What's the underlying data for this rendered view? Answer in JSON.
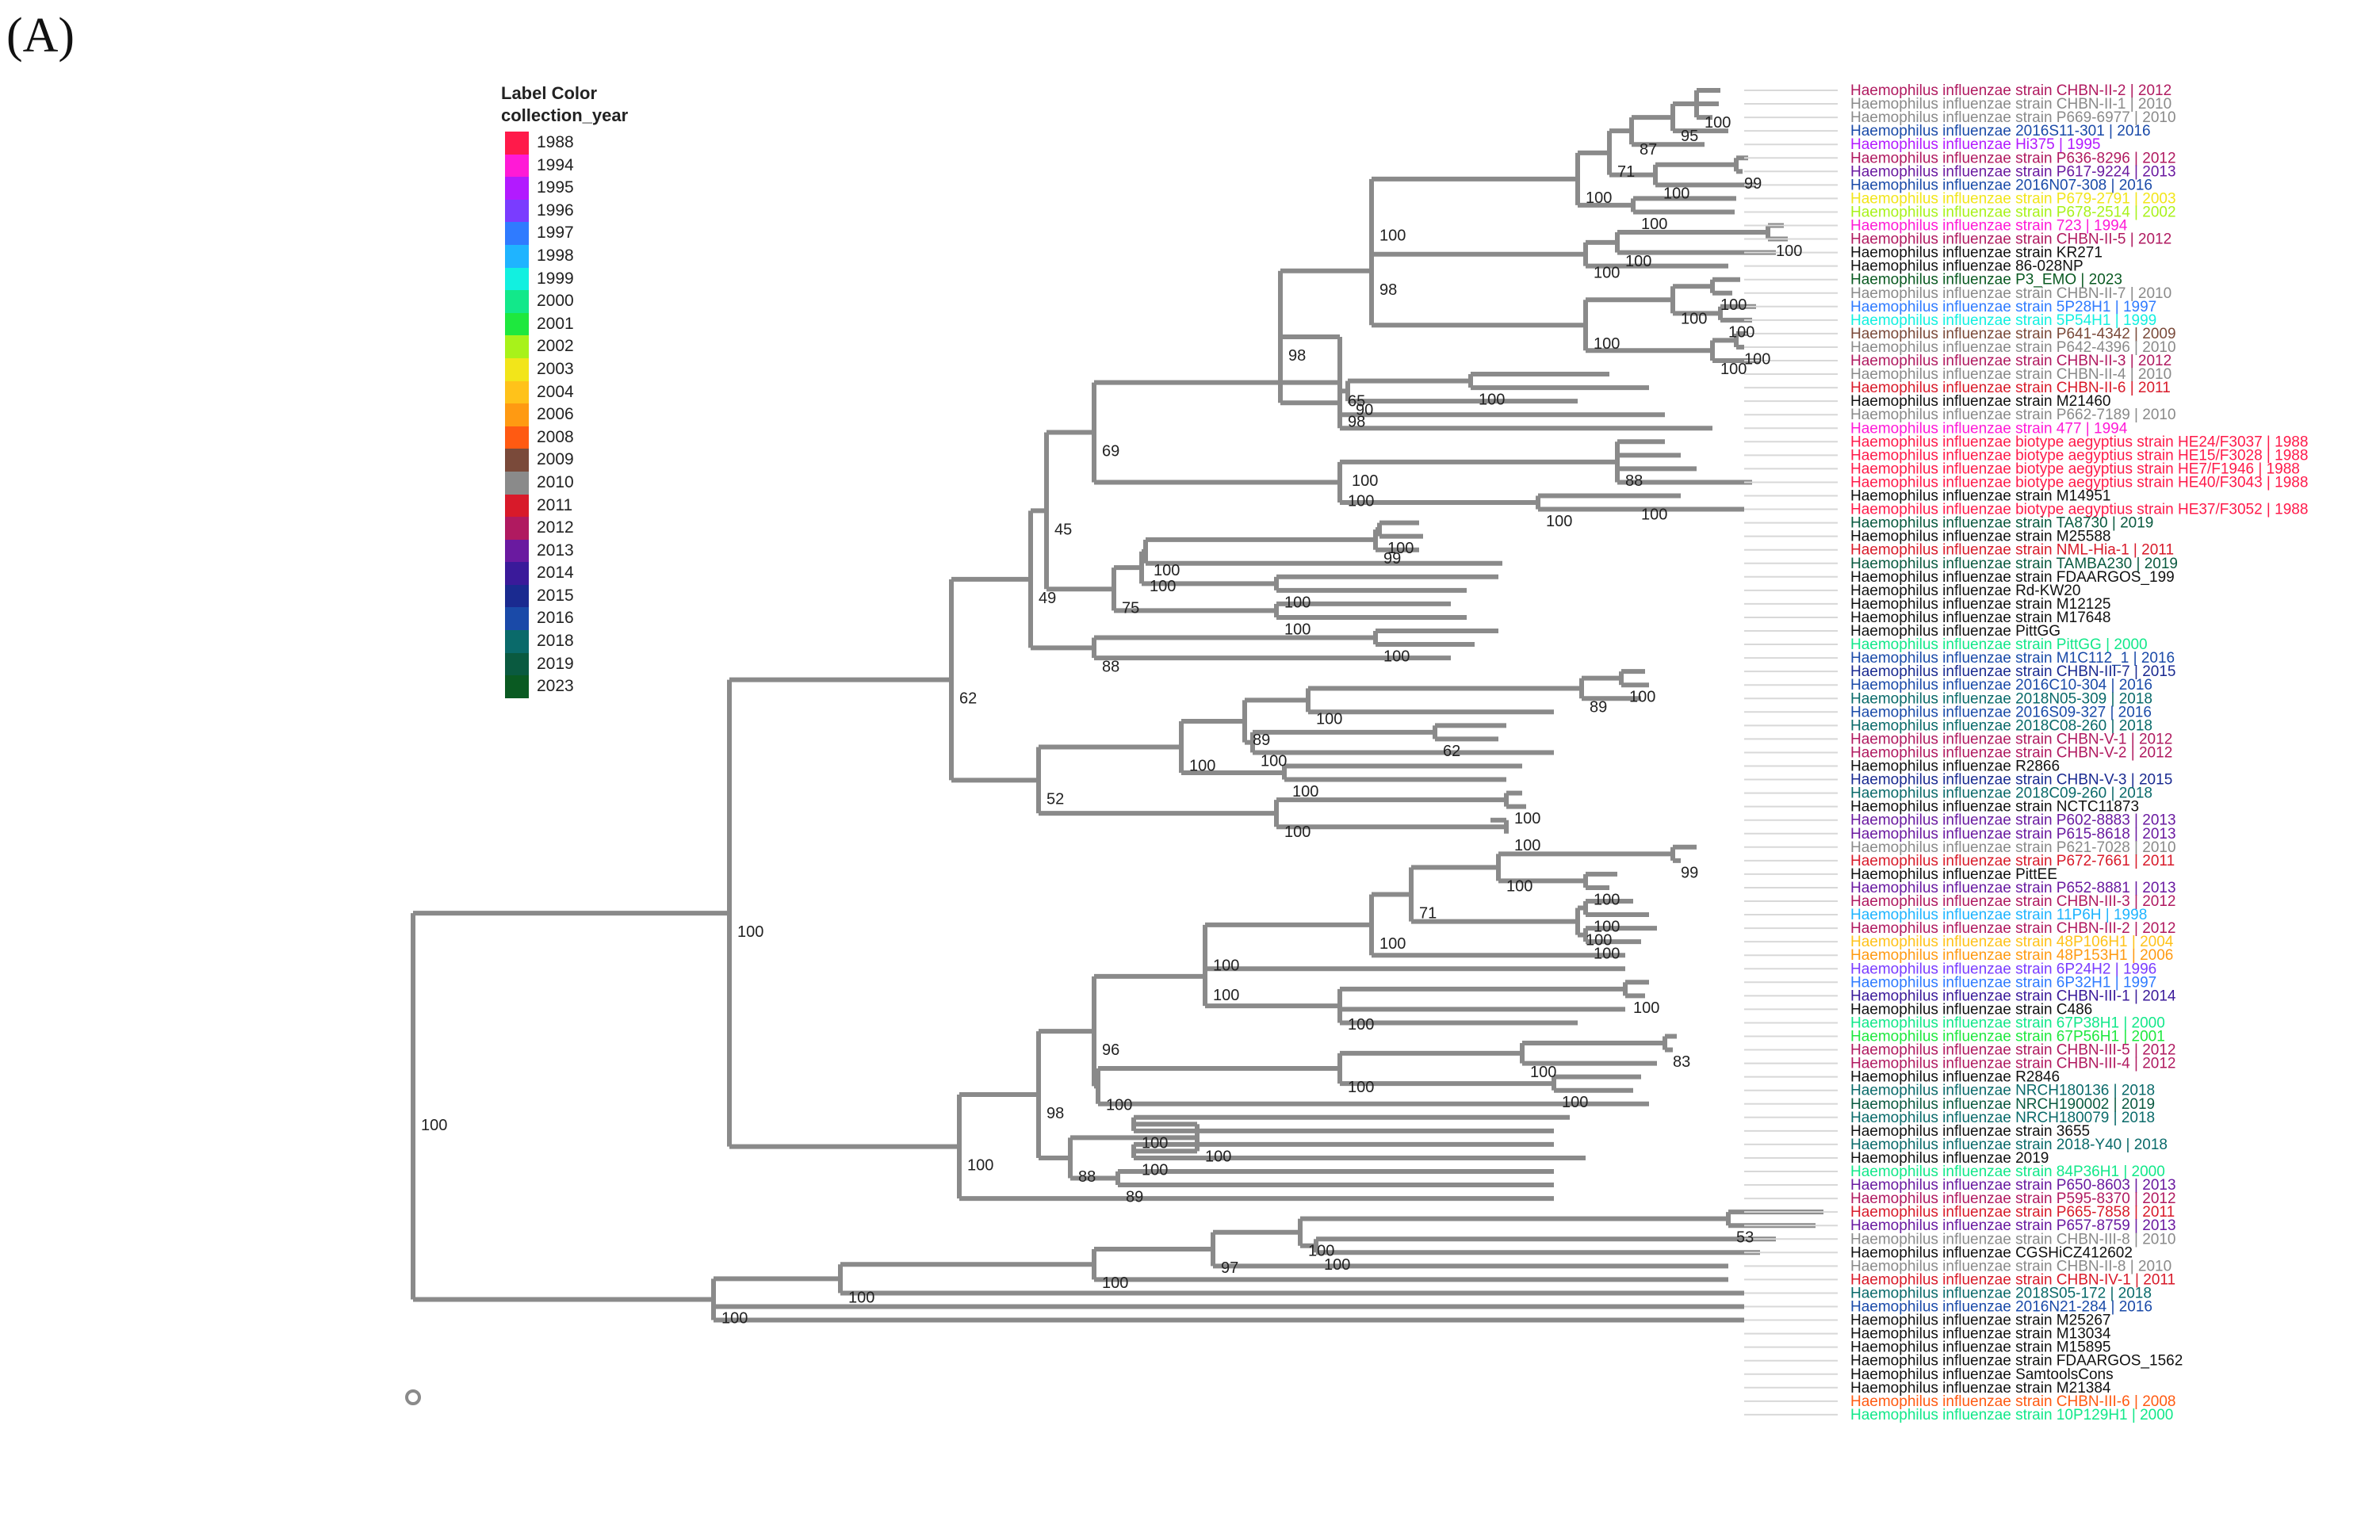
{
  "panel_label": "(A)",
  "legend": {
    "title_line1": "Label Color",
    "title_line2": "collection_year",
    "items": [
      {
        "year": "1988",
        "color": "#ff1a4a"
      },
      {
        "year": "1994",
        "color": "#ff1ad6"
      },
      {
        "year": "1995",
        "color": "#b21aff"
      },
      {
        "year": "1996",
        "color": "#7a3cff"
      },
      {
        "year": "1997",
        "color": "#2f7bff"
      },
      {
        "year": "1998",
        "color": "#1fb4ff"
      },
      {
        "year": "1999",
        "color": "#12f0e0"
      },
      {
        "year": "2000",
        "color": "#12e88a"
      },
      {
        "year": "2001",
        "color": "#1ee83e"
      },
      {
        "year": "2002",
        "color": "#a8f21a"
      },
      {
        "year": "2003",
        "color": "#f2e51a"
      },
      {
        "year": "2004",
        "color": "#ffc21a"
      },
      {
        "year": "2006",
        "color": "#ff9a12"
      },
      {
        "year": "2008",
        "color": "#ff5a12"
      },
      {
        "year": "2009",
        "color": "#7a4a3a"
      },
      {
        "year": "2010",
        "color": "#8a8a8a"
      },
      {
        "year": "2011",
        "color": "#d81a2a"
      },
      {
        "year": "2012",
        "color": "#b01a60"
      },
      {
        "year": "2013",
        "color": "#6a1aa0"
      },
      {
        "year": "2014",
        "color": "#3a1a9a"
      },
      {
        "year": "2015",
        "color": "#1a2a90"
      },
      {
        "year": "2016",
        "color": "#1a4aa8"
      },
      {
        "year": "2018",
        "color": "#0a6a6a"
      },
      {
        "year": "2019",
        "color": "#0a5a40"
      },
      {
        "year": "2023",
        "color": "#0a5a22"
      }
    ]
  },
  "tips": [
    {
      "label": "Haemophilus influenzae strain CHBN-II-2 | 2012",
      "color": "#b01a60"
    },
    {
      "label": "Haemophilus influenzae strain CHBN-II-1 | 2010",
      "color": "#8a8a8a"
    },
    {
      "label": "Haemophilus influenzae strain P669-6977 | 2010",
      "color": "#8a8a8a"
    },
    {
      "label": "Haemophilus influenzae 2016S11-301 | 2016",
      "color": "#1a4aa8"
    },
    {
      "label": "Haemophilus influenzae Hi375 | 1995",
      "color": "#b21aff"
    },
    {
      "label": "Haemophilus influenzae strain P636-8296 | 2012",
      "color": "#b01a60"
    },
    {
      "label": "Haemophilus influenzae strain P617-9224 | 2013",
      "color": "#6a1aa0"
    },
    {
      "label": "Haemophilus influenzae 2016N07-308 | 2016",
      "color": "#1a4aa8"
    },
    {
      "label": "Haemophilus influenzae strain P679-2791 | 2003",
      "color": "#f2e51a"
    },
    {
      "label": "Haemophilus influenzae strain P678-2514 | 2002",
      "color": "#a8f21a"
    },
    {
      "label": "Haemophilus influenzae strain 723 | 1994",
      "color": "#ff1ad6"
    },
    {
      "label": "Haemophilus influenzae strain CHBN-II-5 | 2012",
      "color": "#b01a60"
    },
    {
      "label": "Haemophilus influenzae strain KR271",
      "color": "#111111"
    },
    {
      "label": "Haemophilus influenzae 86-028NP",
      "color": "#111111"
    },
    {
      "label": "Haemophilus influenzae P3_EMO | 2023",
      "color": "#0a5a22"
    },
    {
      "label": "Haemophilus influenzae strain CHBN-II-7 | 2010",
      "color": "#8a8a8a"
    },
    {
      "label": "Haemophilus influenzae strain 5P28H1 | 1997",
      "color": "#2f7bff"
    },
    {
      "label": "Haemophilus influenzae strain 5P54H1 | 1999",
      "color": "#12f0e0"
    },
    {
      "label": "Haemophilus influenzae strain P641-4342 | 2009",
      "color": "#7a4a3a"
    },
    {
      "label": "Haemophilus influenzae strain P642-4396 | 2010",
      "color": "#8a8a8a"
    },
    {
      "label": "Haemophilus influenzae strain CHBN-II-3 | 2012",
      "color": "#b01a60"
    },
    {
      "label": "Haemophilus influenzae strain CHBN-II-4 | 2010",
      "color": "#8a8a8a"
    },
    {
      "label": "Haemophilus influenzae strain CHBN-II-6 | 2011",
      "color": "#d81a2a"
    },
    {
      "label": "Haemophilus influenzae strain M21460",
      "color": "#111111"
    },
    {
      "label": "Haemophilus influenzae strain P662-7189 | 2010",
      "color": "#8a8a8a"
    },
    {
      "label": "Haemophilus influenzae strain 477 | 1994",
      "color": "#ff1ad6"
    },
    {
      "label": "Haemophilus influenzae biotype aegyptius strain HE24/F3037 | 1988",
      "color": "#ff1a4a"
    },
    {
      "label": "Haemophilus influenzae biotype aegyptius strain HE15/F3028 | 1988",
      "color": "#ff1a4a"
    },
    {
      "label": "Haemophilus influenzae biotype aegyptius strain HE7/F1946 | 1988",
      "color": "#ff1a4a"
    },
    {
      "label": "Haemophilus influenzae biotype aegyptius strain HE40/F3043 | 1988",
      "color": "#ff1a4a"
    },
    {
      "label": "Haemophilus influenzae strain M14951",
      "color": "#111111"
    },
    {
      "label": "Haemophilus influenzae biotype aegyptius strain HE37/F3052 | 1988",
      "color": "#ff1a4a"
    },
    {
      "label": "Haemophilus influenzae strain TA8730 | 2019",
      "color": "#0a5a40"
    },
    {
      "label": "Haemophilus influenzae strain M25588",
      "color": "#111111"
    },
    {
      "label": "Haemophilus influenzae strain NML-Hia-1 | 2011",
      "color": "#d81a2a"
    },
    {
      "label": "Haemophilus influenzae strain TAMBA230 | 2019",
      "color": "#0a5a40"
    },
    {
      "label": "Haemophilus influenzae strain FDAARGOS_199",
      "color": "#111111"
    },
    {
      "label": "Haemophilus influenzae Rd-KW20",
      "color": "#111111"
    },
    {
      "label": "Haemophilus influenzae strain M12125",
      "color": "#111111"
    },
    {
      "label": "Haemophilus influenzae strain M17648",
      "color": "#111111"
    },
    {
      "label": "Haemophilus influenzae PittGG",
      "color": "#111111"
    },
    {
      "label": "Haemophilus influenzae strain PittGG | 2000",
      "color": "#12e88a"
    },
    {
      "label": "Haemophilus influenzae strain M1C112_1 | 2016",
      "color": "#1a4aa8"
    },
    {
      "label": "Haemophilus influenzae strain CHBN-III-7 | 2015",
      "color": "#1a2a90"
    },
    {
      "label": "Haemophilus influenzae 2016C10-304 | 2016",
      "color": "#1a4aa8"
    },
    {
      "label": "Haemophilus influenzae 2018N05-309 | 2018",
      "color": "#0a6a6a"
    },
    {
      "label": "Haemophilus influenzae 2016S09-327 | 2016",
      "color": "#1a4aa8"
    },
    {
      "label": "Haemophilus influenzae 2018C08-260 | 2018",
      "color": "#0a6a6a"
    },
    {
      "label": "Haemophilus influenzae strain CHBN-V-1 | 2012",
      "color": "#b01a60"
    },
    {
      "label": "Haemophilus influenzae strain CHBN-V-2 | 2012",
      "color": "#b01a60"
    },
    {
      "label": "Haemophilus influenzae R2866",
      "color": "#111111"
    },
    {
      "label": "Haemophilus influenzae strain CHBN-V-3 | 2015",
      "color": "#1a2a90"
    },
    {
      "label": "Haemophilus influenzae 2018C09-260 | 2018",
      "color": "#0a6a6a"
    },
    {
      "label": "Haemophilus influenzae strain NCTC11873",
      "color": "#111111"
    },
    {
      "label": "Haemophilus influenzae strain P602-8883 | 2013",
      "color": "#6a1aa0"
    },
    {
      "label": "Haemophilus influenzae strain P615-8618 | 2013",
      "color": "#6a1aa0"
    },
    {
      "label": "Haemophilus influenzae strain P621-7028 | 2010",
      "color": "#8a8a8a"
    },
    {
      "label": "Haemophilus influenzae strain P672-7661 | 2011",
      "color": "#d81a2a"
    },
    {
      "label": "Haemophilus influenzae PittEE",
      "color": "#111111"
    },
    {
      "label": "Haemophilus influenzae strain P652-8881 | 2013",
      "color": "#6a1aa0"
    },
    {
      "label": "Haemophilus influenzae strain CHBN-III-3 | 2012",
      "color": "#b01a60"
    },
    {
      "label": "Haemophilus influenzae strain 11P6H | 1998",
      "color": "#1fb4ff"
    },
    {
      "label": "Haemophilus influenzae strain CHBN-III-2 | 2012",
      "color": "#b01a60"
    },
    {
      "label": "Haemophilus influenzae strain 48P106H1 | 2004",
      "color": "#ffc21a"
    },
    {
      "label": "Haemophilus influenzae strain 48P153H1 | 2006",
      "color": "#ff9a12"
    },
    {
      "label": "Haemophilus influenzae strain 6P24H2 | 1996",
      "color": "#7a3cff"
    },
    {
      "label": "Haemophilus influenzae strain 6P32H1 | 1997",
      "color": "#2f7bff"
    },
    {
      "label": "Haemophilus influenzae strain CHBN-III-1 | 2014",
      "color": "#3a1a9a"
    },
    {
      "label": "Haemophilus influenzae strain C486",
      "color": "#111111"
    },
    {
      "label": "Haemophilus influenzae strain 67P38H1 | 2000",
      "color": "#12e88a"
    },
    {
      "label": "Haemophilus influenzae strain 67P56H1 | 2001",
      "color": "#1ee83e"
    },
    {
      "label": "Haemophilus influenzae strain CHBN-III-5 | 2012",
      "color": "#b01a60"
    },
    {
      "label": "Haemophilus influenzae strain CHBN-III-4 | 2012",
      "color": "#b01a60"
    },
    {
      "label": "Haemophilus influenzae R2846",
      "color": "#111111"
    },
    {
      "label": "Haemophilus influenzae NRCH180136 | 2018",
      "color": "#0a6a6a"
    },
    {
      "label": "Haemophilus influenzae NRCH190002 | 2019",
      "color": "#0a5a40"
    },
    {
      "label": "Haemophilus influenzae NRCH180079 | 2018",
      "color": "#0a6a6a"
    },
    {
      "label": "Haemophilus influenzae strain 3655",
      "color": "#111111"
    },
    {
      "label": "Haemophilus influenzae strain 2018-Y40 | 2018",
      "color": "#0a6a6a"
    },
    {
      "label": "Haemophilus influenzae 2019",
      "color": "#111111"
    },
    {
      "label": "Haemophilus influenzae strain 84P36H1 | 2000",
      "color": "#12e88a"
    },
    {
      "label": "Haemophilus influenzae strain P650-8603 | 2013",
      "color": "#6a1aa0"
    },
    {
      "label": "Haemophilus influenzae strain P595-8370 | 2012",
      "color": "#b01a60"
    },
    {
      "label": "Haemophilus influenzae strain P665-7858 | 2011",
      "color": "#d81a2a"
    },
    {
      "label": "Haemophilus influenzae strain P657-8759 | 2013",
      "color": "#6a1aa0"
    },
    {
      "label": "Haemophilus influenzae strain CHBN-III-8 | 2010",
      "color": "#8a8a8a"
    },
    {
      "label": "Haemophilus influenzae CGSHiCZ412602",
      "color": "#111111"
    },
    {
      "label": "Haemophilus influenzae strain CHBN-II-8 | 2010",
      "color": "#8a8a8a"
    },
    {
      "label": "Haemophilus influenzae strain CHBN-IV-1 | 2011",
      "color": "#d81a2a"
    },
    {
      "label": "Haemophilus influenzae 2018S05-172 | 2018",
      "color": "#0a6a6a"
    },
    {
      "label": "Haemophilus influenzae 2016N21-284 | 2016",
      "color": "#1a4aa8"
    },
    {
      "label": "Haemophilus influenzae strain M25267",
      "color": "#111111"
    },
    {
      "label": "Haemophilus influenzae strain M13034",
      "color": "#111111"
    },
    {
      "label": "Haemophilus influenzae strain M15895",
      "color": "#111111"
    },
    {
      "label": "Haemophilus influenzae strain FDAARGOS_1562",
      "color": "#111111"
    },
    {
      "label": "Haemophilus influenzae SamtoolsCons",
      "color": "#111111"
    },
    {
      "label": "Haemophilus influenzae strain M21384",
      "color": "#111111"
    },
    {
      "label": "Haemophilus influenzae strain CHBN-III-6 | 2008",
      "color": "#ff5a12"
    },
    {
      "label": "Haemophilus influenzae strain 10P129H1 | 2000",
      "color": "#12e88a"
    }
  ],
  "support_values": [
    "100",
    "95",
    "87",
    "99",
    "71",
    "100",
    "100",
    "100",
    "100",
    "100",
    "100",
    "100",
    "100",
    "100",
    "100",
    "100",
    "98",
    "98",
    "100",
    "90",
    "98",
    "65",
    "88",
    "100",
    "100",
    "100",
    "100",
    "69",
    "99",
    "100",
    "100",
    "45",
    "75",
    "100",
    "100",
    "100",
    "88",
    "100",
    "100",
    "49",
    "89",
    "100",
    "89",
    "100",
    "100",
    "62",
    "100",
    "100",
    "52",
    "100",
    "100",
    "100",
    "62",
    "99",
    "100",
    "100",
    "100",
    "71",
    "100",
    "100",
    "100",
    "100",
    "100",
    "100",
    "100",
    "96",
    "100",
    "100",
    "100",
    "83",
    "98",
    "100",
    "100",
    "100",
    "89",
    "100",
    "88",
    "100",
    "53",
    "100",
    "97",
    "100",
    "100",
    "100"
  ]
}
